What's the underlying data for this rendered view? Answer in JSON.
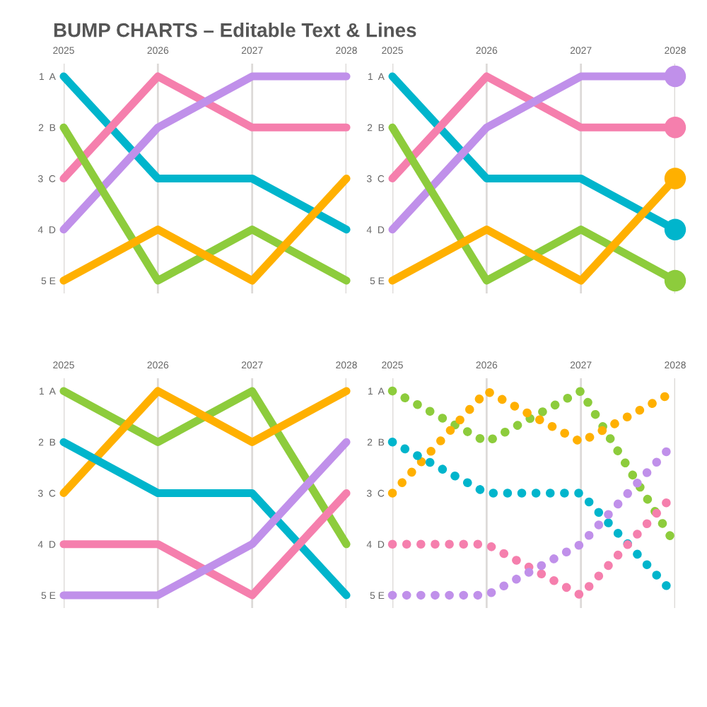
{
  "chart_data": [
    {
      "type": "line",
      "title": "BUMP CHARTS – Editable Text & Lines",
      "x": [
        2025,
        2026,
        2027,
        2028
      ],
      "xlim": [
        2025,
        2028
      ],
      "xticks": [
        2025,
        2026,
        2027,
        2028
      ],
      "ylim": [
        5.25,
        0.75
      ],
      "yticks": [
        {
          "value": 1,
          "label": "1  A"
        },
        {
          "value": 2,
          "label": "2  B"
        },
        {
          "value": 3,
          "label": "3  C"
        },
        {
          "value": 4,
          "label": "4  D"
        },
        {
          "value": 5,
          "label": "5 E"
        }
      ],
      "grid": "x",
      "line_style": "solid",
      "series": [
        {
          "color": "#00b5cc",
          "values": [
            1,
            3,
            3,
            4
          ]
        },
        {
          "color": "#f57fad",
          "values": [
            3,
            1,
            2,
            2
          ]
        },
        {
          "color": "#c090ea",
          "values": [
            4,
            2,
            1,
            1
          ]
        },
        {
          "color": "#8dcc3c",
          "values": [
            2,
            5,
            4,
            5
          ]
        },
        {
          "color": "#ffb000",
          "values": [
            5,
            4,
            5,
            3
          ]
        }
      ]
    },
    {
      "type": "line",
      "x": [
        2025,
        2026,
        2027,
        2028
      ],
      "xlim": [
        2025,
        2028
      ],
      "xticks": [
        2025,
        2026,
        2027,
        2028
      ],
      "ylim": [
        5.25,
        0.75
      ],
      "yticks": [
        {
          "value": 1,
          "label": "1  A"
        },
        {
          "value": 2,
          "label": "2  B"
        },
        {
          "value": 3,
          "label": "3  C"
        },
        {
          "value": 4,
          "label": "4  D"
        },
        {
          "value": 5,
          "label": "5 E"
        }
      ],
      "grid": "x",
      "line_style": "solid",
      "series": [
        {
          "color": "#00b5cc",
          "values": [
            1,
            3,
            3,
            4
          ]
        },
        {
          "color": "#f57fad",
          "values": [
            3,
            1,
            2,
            2
          ]
        },
        {
          "color": "#c090ea",
          "values": [
            4,
            2,
            1,
            1
          ]
        },
        {
          "color": "#8dcc3c",
          "values": [
            2,
            5,
            4,
            5
          ]
        },
        {
          "color": "#ffb000",
          "values": [
            5,
            4,
            5,
            3
          ]
        },
        {
          "type": "scatter",
          "marker": "circle",
          "values": [
            null,
            null,
            null,
            4
          ],
          "color": "#00b5cc"
        },
        {
          "type": "scatter",
          "marker": "circle",
          "values": [
            null,
            null,
            null,
            2
          ],
          "color": "#f57fad"
        },
        {
          "type": "scatter",
          "marker": "circle",
          "values": [
            null,
            null,
            null,
            1
          ],
          "color": "#c090ea"
        },
        {
          "type": "scatter",
          "marker": "circle",
          "values": [
            null,
            null,
            null,
            5
          ],
          "color": "#8dcc3c"
        },
        {
          "type": "scatter",
          "marker": "circle",
          "values": [
            null,
            null,
            null,
            3
          ],
          "color": "#ffb000"
        }
      ]
    },
    {
      "type": "line",
      "x": [
        2025,
        2026,
        2027,
        2028
      ],
      "xlim": [
        2025,
        2028
      ],
      "xticks": [
        2025,
        2026,
        2027,
        2028
      ],
      "ylim": [
        5.25,
        0.75
      ],
      "yticks": [
        {
          "value": 1,
          "label": "1  A"
        },
        {
          "value": 2,
          "label": "2  B"
        },
        {
          "value": 3,
          "label": "3  C"
        },
        {
          "value": 4,
          "label": "4  D"
        },
        {
          "value": 5,
          "label": "5 E"
        }
      ],
      "grid": "x",
      "line_style": "solid",
      "series": [
        {
          "color": "#8dcc3c",
          "values": [
            1,
            2,
            1,
            4
          ]
        },
        {
          "color": "#ffb000",
          "values": [
            3,
            1,
            2,
            1
          ]
        },
        {
          "color": "#00b5cc",
          "values": [
            2,
            3,
            3,
            5
          ]
        },
        {
          "color": "#f57fad",
          "values": [
            4,
            4,
            5,
            3
          ]
        },
        {
          "color": "#c090ea",
          "values": [
            5,
            5,
            4,
            2
          ]
        }
      ]
    },
    {
      "type": "line",
      "x": [
        2025,
        2026,
        2027,
        2028
      ],
      "xlim": [
        2025,
        2028
      ],
      "xticks": [
        2025,
        2026,
        2027,
        2028
      ],
      "ylim": [
        5.25,
        0.75
      ],
      "yticks": [
        {
          "value": 1,
          "label": "1  A"
        },
        {
          "value": 2,
          "label": "2  B"
        },
        {
          "value": 3,
          "label": "3  C"
        },
        {
          "value": 4,
          "label": "4  D"
        },
        {
          "value": 5,
          "label": "5 E"
        }
      ],
      "grid": "x",
      "line_style": "dotted",
      "series": [
        {
          "color": "#8dcc3c",
          "values": [
            1,
            2,
            1,
            4
          ]
        },
        {
          "color": "#ffb000",
          "values": [
            3,
            1,
            2,
            1
          ]
        },
        {
          "color": "#00b5cc",
          "values": [
            2,
            3,
            3,
            5
          ]
        },
        {
          "color": "#f57fad",
          "values": [
            4,
            4,
            5,
            3
          ]
        },
        {
          "color": "#c090ea",
          "values": [
            5,
            5,
            4,
            2
          ]
        }
      ]
    }
  ]
}
